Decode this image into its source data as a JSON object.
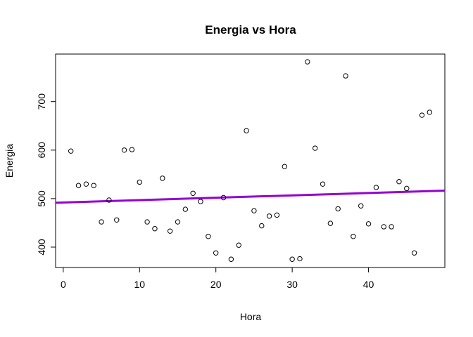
{
  "chart_data": {
    "type": "scatter",
    "title": "Energia vs Hora",
    "xlabel": "Hora",
    "ylabel": "Energia",
    "xlim": [
      -1,
      50
    ],
    "ylim": [
      358,
      798
    ],
    "xticks": [
      0,
      10,
      20,
      30,
      40
    ],
    "yticks": [
      400,
      500,
      600,
      700
    ],
    "x": [
      1,
      2,
      3,
      4,
      5,
      6,
      7,
      8,
      9,
      10,
      11,
      12,
      13,
      14,
      15,
      16,
      17,
      18,
      19,
      20,
      21,
      22,
      23,
      24,
      25,
      26,
      27,
      28,
      29,
      30,
      31,
      32,
      33,
      34,
      35,
      36,
      37,
      38,
      39,
      40,
      41,
      42,
      43,
      44,
      45,
      46,
      47,
      48
    ],
    "y": [
      598,
      527,
      530,
      527,
      452,
      497,
      456,
      600,
      601,
      534,
      452,
      438,
      542,
      433,
      452,
      478,
      511,
      494,
      422,
      388,
      502,
      375,
      404,
      640,
      475,
      444,
      464,
      466,
      566,
      375,
      376,
      782,
      604,
      530,
      449,
      479,
      753,
      422,
      485,
      448,
      523,
      442,
      442,
      535,
      521,
      388,
      672,
      678
    ],
    "fit_line": {
      "intercept": 492,
      "slope": 0.49,
      "color": "#9400D3"
    },
    "point_color": "#000000"
  }
}
